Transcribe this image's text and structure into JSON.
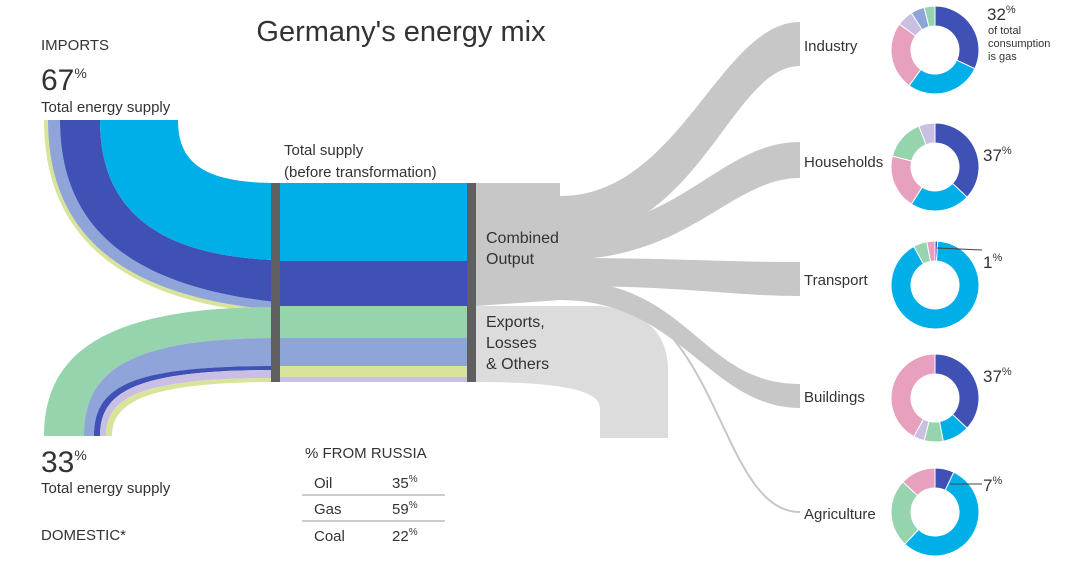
{
  "title": "Germany's energy mix",
  "imports": {
    "heading": "IMPORTS",
    "value": "67",
    "unit": "%",
    "label": "Total energy supply"
  },
  "domestic": {
    "heading": "DOMESTIC*",
    "value": "33",
    "unit": "%",
    "label": "Total energy supply"
  },
  "total_supply_label": [
    "Total supply",
    "(before transformation)"
  ],
  "combined_output_label": [
    "Combined",
    "Output"
  ],
  "exports_label": [
    "Exports,",
    "Losses",
    "& Others"
  ],
  "russia_table": {
    "heading": "% FROM RUSSIA",
    "rows": [
      {
        "fuel": "Oil",
        "value": "35",
        "unit": "%"
      },
      {
        "fuel": "Gas",
        "value": "59",
        "unit": "%"
      },
      {
        "fuel": "Coal",
        "value": "22",
        "unit": "%"
      }
    ]
  },
  "colors": {
    "oil": "#00aee8",
    "gas": "#3f51b5",
    "coal": "#8fa4d8",
    "renewables": "#96d4ae",
    "nuclear": "#d9e49a",
    "other": "#c9bfe3",
    "electricity": "#e8a0bf",
    "flow_output": "#c7c7c7",
    "flow_exports": "#dcdcdc",
    "separator": "#5f5f5f"
  },
  "chart_data": {
    "type": "sankey",
    "supply_sources": [
      {
        "name": "Imports",
        "share_pct": 67
      },
      {
        "name": "Domestic",
        "share_pct": 33
      }
    ],
    "sectors": [
      {
        "name": "Industry",
        "gas_label": "32",
        "unit": "%",
        "note": [
          "of total",
          "consumption",
          "is gas"
        ],
        "slices": [
          {
            "fuel": "gas",
            "value": 32
          },
          {
            "fuel": "oil",
            "value": 28
          },
          {
            "fuel": "electricity",
            "value": 25
          },
          {
            "fuel": "other",
            "value": 6
          },
          {
            "fuel": "coal",
            "value": 5
          },
          {
            "fuel": "renewables",
            "value": 4
          }
        ]
      },
      {
        "name": "Households",
        "gas_label": "37",
        "unit": "%",
        "slices": [
          {
            "fuel": "gas",
            "value": 37
          },
          {
            "fuel": "oil",
            "value": 22
          },
          {
            "fuel": "electricity",
            "value": 20
          },
          {
            "fuel": "renewables",
            "value": 15
          },
          {
            "fuel": "other",
            "value": 6
          }
        ]
      },
      {
        "name": "Transport",
        "gas_label": "1",
        "unit": "%",
        "slices": [
          {
            "fuel": "gas",
            "value": 1
          },
          {
            "fuel": "oil",
            "value": 91
          },
          {
            "fuel": "renewables",
            "value": 5
          },
          {
            "fuel": "electricity",
            "value": 3
          }
        ]
      },
      {
        "name": "Buildings",
        "gas_label": "37",
        "unit": "%",
        "slices": [
          {
            "fuel": "gas",
            "value": 37
          },
          {
            "fuel": "oil",
            "value": 10
          },
          {
            "fuel": "renewables",
            "value": 7
          },
          {
            "fuel": "other",
            "value": 4
          },
          {
            "fuel": "electricity",
            "value": 42
          }
        ]
      },
      {
        "name": "Agriculture",
        "gas_label": "7",
        "unit": "%",
        "slices": [
          {
            "fuel": "gas",
            "value": 7
          },
          {
            "fuel": "oil",
            "value": 55
          },
          {
            "fuel": "renewables",
            "value": 25
          },
          {
            "fuel": "electricity",
            "value": 13
          }
        ]
      }
    ]
  }
}
